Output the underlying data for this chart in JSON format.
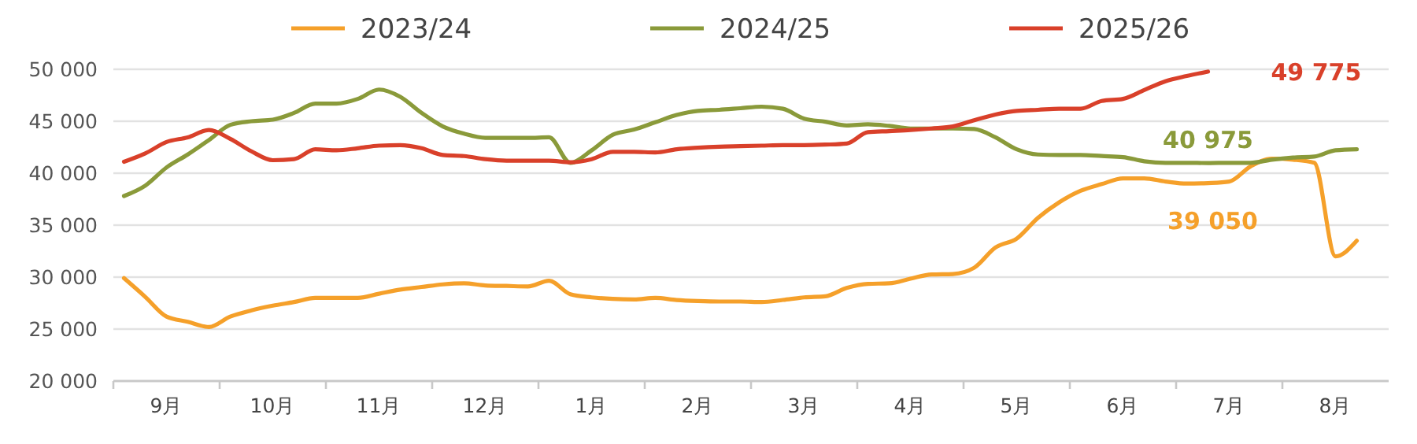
{
  "chart_data": {
    "type": "line",
    "categories": [
      null,
      null,
      "9月",
      null,
      null,
      null,
      null,
      "10月",
      null,
      null,
      null,
      null,
      "11月",
      null,
      null,
      null,
      null,
      "12月",
      null,
      null,
      null,
      null,
      "1月",
      null,
      null,
      null,
      null,
      "2月",
      null,
      null,
      null,
      null,
      "3月",
      null,
      null,
      null,
      null,
      "4月",
      null,
      null,
      null,
      null,
      "5月",
      null,
      null,
      null,
      null,
      "6月",
      null,
      null,
      null,
      null,
      "7月",
      null,
      null,
      null,
      null,
      "8月",
      null,
      null
    ],
    "ylim": [
      20000,
      50000
    ],
    "yticks": [
      {
        "value": 20000,
        "label": "20 000"
      },
      {
        "value": 25000,
        "label": "25 000"
      },
      {
        "value": 30000,
        "label": "30 000"
      },
      {
        "value": 35000,
        "label": "35 000"
      },
      {
        "value": 40000,
        "label": "40 000"
      },
      {
        "value": 45000,
        "label": "45 000"
      },
      {
        "value": 50000,
        "label": "50 000"
      }
    ],
    "grid": "y",
    "legend": "top",
    "marker": "none",
    "line_style": "solid",
    "series": [
      {
        "name": "2023/24",
        "color": "#f5a02a",
        "values": [
          29900,
          28100,
          26200,
          25700,
          25200,
          26200,
          26800,
          27250,
          27600,
          28000,
          28000,
          28000,
          28400,
          28800,
          29050,
          29300,
          29400,
          29200,
          29150,
          29100,
          29650,
          28350,
          28050,
          27900,
          27850,
          28000,
          27800,
          27700,
          27650,
          27650,
          27600,
          27800,
          28050,
          28150,
          28950,
          29350,
          29400,
          29850,
          30250,
          30300,
          30900,
          32850,
          33700,
          35700,
          37200,
          38300,
          38950,
          39500,
          39500,
          39200,
          39000,
          39050,
          39200,
          40650,
          41400,
          41300,
          41000,
          32000,
          33500,
          null
        ]
      },
      {
        "name": "2024/25",
        "color": "#8a9a3a",
        "values": [
          37800,
          38800,
          40550,
          41800,
          43200,
          44650,
          45000,
          45150,
          45800,
          46700,
          46700,
          47150,
          48050,
          47350,
          45800,
          44500,
          43800,
          43400,
          43400,
          43400,
          43450,
          41000,
          42200,
          43700,
          44200,
          44900,
          45600,
          46000,
          46100,
          46250,
          46400,
          46200,
          45250,
          44950,
          44600,
          44700,
          44550,
          44300,
          44300,
          44300,
          44250,
          43450,
          42300,
          41800,
          41750,
          41750,
          41650,
          41550,
          41150,
          41000,
          41000,
          40975,
          41000,
          41000,
          41300,
          41500,
          41600,
          42200,
          42300,
          null
        ]
      },
      {
        "name": "2025/26",
        "color": "#d9402a",
        "values": [
          41100,
          41900,
          43000,
          43450,
          44150,
          43300,
          42100,
          41250,
          41350,
          42300,
          42200,
          42400,
          42650,
          42700,
          42400,
          41750,
          41650,
          41350,
          41200,
          41200,
          41200,
          41050,
          41350,
          42050,
          42050,
          42000,
          42300,
          42450,
          42550,
          42600,
          42650,
          42700,
          42700,
          42750,
          42850,
          43950,
          44050,
          44150,
          44300,
          44500,
          45100,
          45650,
          46000,
          46100,
          46200,
          46200,
          46950,
          47150,
          48000,
          48850,
          49350,
          49775,
          null,
          null,
          null,
          null,
          null,
          null,
          null,
          null
        ]
      }
    ],
    "annotations": [
      {
        "text": "39 050",
        "y": 39050
      },
      {
        "text": "40 975",
        "y": 40975
      },
      "49 775"
    ]
  }
}
